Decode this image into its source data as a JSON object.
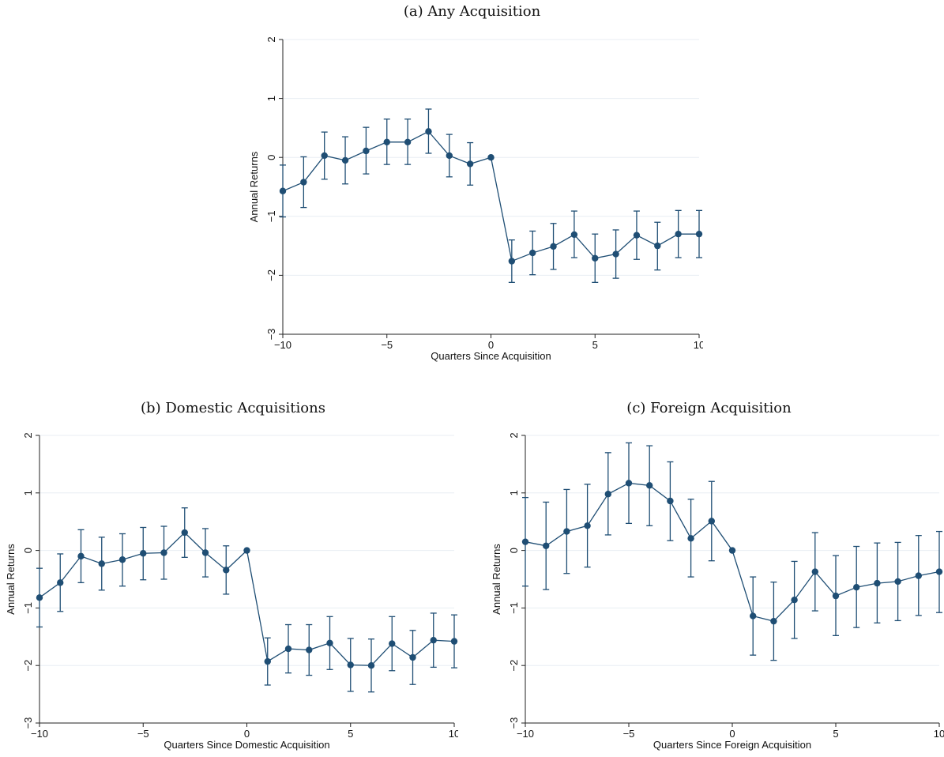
{
  "chart_data": [
    {
      "type": "scatter",
      "title": "(a) Any Acquisition",
      "xlabel": "Quarters Since Acquisition",
      "ylabel": "Annual Returns",
      "xlim": [
        -10,
        10
      ],
      "ylim": [
        -3,
        2
      ],
      "xticks": [
        -10,
        -5,
        0,
        5,
        10
      ],
      "yticks": [
        -3,
        -2,
        -1,
        0,
        1,
        2
      ],
      "grid": true,
      "x": [
        -10,
        -9,
        -8,
        -7,
        -6,
        -5,
        -4,
        -3,
        -2,
        -1,
        0,
        1,
        2,
        3,
        4,
        5,
        6,
        7,
        8,
        9,
        10
      ],
      "y": [
        -0.57,
        -0.42,
        0.03,
        -0.05,
        0.11,
        0.26,
        0.26,
        0.44,
        0.03,
        -0.11,
        0.0,
        -1.76,
        -1.62,
        -1.51,
        -1.31,
        -1.71,
        -1.64,
        -1.32,
        -1.5,
        -1.3,
        -1.3
      ],
      "lower": [
        -1.01,
        -0.85,
        -0.37,
        -0.45,
        -0.28,
        -0.12,
        -0.12,
        0.07,
        -0.33,
        -0.47,
        0.0,
        -2.12,
        -1.99,
        -1.9,
        -1.7,
        -2.12,
        -2.05,
        -1.73,
        -1.91,
        -1.7,
        -1.7
      ],
      "upper": [
        -0.13,
        0.01,
        0.43,
        0.35,
        0.51,
        0.65,
        0.65,
        0.82,
        0.39,
        0.25,
        0.0,
        -1.4,
        -1.25,
        -1.12,
        -0.91,
        -1.3,
        -1.23,
        -0.91,
        -1.1,
        -0.9,
        -0.9
      ]
    },
    {
      "type": "scatter",
      "title": "(b) Domestic Acquisitions",
      "xlabel": "Quarters Since Domestic Acquisition",
      "ylabel": "Annual Returns",
      "xlim": [
        -10,
        10
      ],
      "ylim": [
        -3,
        2
      ],
      "xticks": [
        -10,
        -5,
        0,
        5,
        10
      ],
      "yticks": [
        -3,
        -2,
        -1,
        0,
        1,
        2
      ],
      "grid": true,
      "x": [
        -10,
        -9,
        -8,
        -7,
        -6,
        -5,
        -4,
        -3,
        -2,
        -1,
        0,
        1,
        2,
        3,
        4,
        5,
        6,
        7,
        8,
        9,
        10
      ],
      "y": [
        -0.82,
        -0.56,
        -0.1,
        -0.23,
        -0.16,
        -0.05,
        -0.04,
        0.31,
        -0.04,
        -0.34,
        0.0,
        -1.93,
        -1.71,
        -1.73,
        -1.61,
        -1.99,
        -2.0,
        -1.62,
        -1.86,
        -1.56,
        -1.58
      ],
      "lower": [
        -1.33,
        -1.06,
        -0.56,
        -0.69,
        -0.62,
        -0.51,
        -0.5,
        -0.12,
        -0.46,
        -0.76,
        0.0,
        -2.34,
        -2.13,
        -2.17,
        -2.07,
        -2.45,
        -2.46,
        -2.09,
        -2.33,
        -2.03,
        -2.04
      ],
      "upper": [
        -0.31,
        -0.06,
        0.36,
        0.23,
        0.29,
        0.4,
        0.42,
        0.74,
        0.38,
        0.08,
        0.0,
        -1.52,
        -1.29,
        -1.29,
        -1.15,
        -1.53,
        -1.54,
        -1.15,
        -1.39,
        -1.09,
        -1.12
      ]
    },
    {
      "type": "scatter",
      "title": "(c) Foreign Acquisition",
      "xlabel": "Quarters Since Foreign Acquisition",
      "ylabel": "Annual Returns",
      "xlim": [
        -10,
        10
      ],
      "ylim": [
        -3,
        2
      ],
      "xticks": [
        -10,
        -5,
        0,
        5,
        10
      ],
      "yticks": [
        -3,
        -2,
        -1,
        0,
        1,
        2
      ],
      "grid": true,
      "x": [
        -10,
        -9,
        -8,
        -7,
        -6,
        -5,
        -4,
        -3,
        -2,
        -1,
        0,
        1,
        2,
        3,
        4,
        5,
        6,
        7,
        8,
        9,
        10
      ],
      "y": [
        0.15,
        0.08,
        0.33,
        0.43,
        0.98,
        1.17,
        1.13,
        0.86,
        0.21,
        0.51,
        0.0,
        -1.14,
        -1.23,
        -0.86,
        -0.37,
        -0.79,
        -0.64,
        -0.57,
        -0.54,
        -0.44,
        -0.37
      ],
      "lower": [
        -0.62,
        -0.68,
        -0.4,
        -0.29,
        0.27,
        0.47,
        0.43,
        0.17,
        -0.46,
        -0.18,
        0.0,
        -1.82,
        -1.91,
        -1.53,
        -1.05,
        -1.48,
        -1.34,
        -1.26,
        -1.22,
        -1.13,
        -1.08
      ],
      "upper": [
        0.92,
        0.84,
        1.06,
        1.15,
        1.7,
        1.87,
        1.82,
        1.54,
        0.89,
        1.2,
        0.0,
        -0.46,
        -0.55,
        -0.19,
        0.31,
        -0.09,
        0.07,
        0.13,
        0.14,
        0.26,
        0.33
      ]
    }
  ],
  "colors": {
    "series": "#1f4e74",
    "grid": "#e8eef3",
    "axis": "#222222"
  }
}
